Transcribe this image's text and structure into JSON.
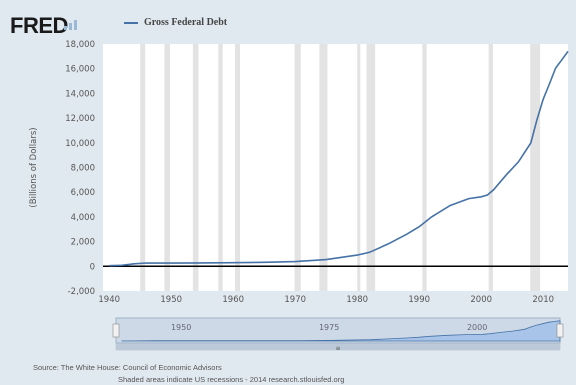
{
  "brand": {
    "name": "FRED",
    "icon": "graph-bars-icon"
  },
  "footer": {
    "source": "Source: The White House: Council of Economic Advisors",
    "note": "Shaded areas indicate US recessions - 2014 research.stlouisfed.org"
  },
  "navigator": {
    "tick_labels": [
      "1950",
      "1975",
      "2000"
    ]
  },
  "colors": {
    "line": "#4572a7",
    "plot_background": "#ffffff",
    "page_background": "#e1e9f0",
    "recession": "#e3e3e3",
    "navigator_fill": "#a8c4e8"
  },
  "chart_data": {
    "type": "line",
    "title": "",
    "xlabel": "",
    "ylabel": "(Billions of Dollars)",
    "xlim": [
      1939,
      2014
    ],
    "ylim": [
      -2000,
      18000
    ],
    "x_ticks": [
      "1940",
      "1950",
      "1960",
      "1970",
      "1980",
      "1990",
      "2000",
      "2010"
    ],
    "y_ticks": [
      "-2,000",
      "0",
      "2,000",
      "4,000",
      "6,000",
      "8,000",
      "10,000",
      "12,000",
      "14,000",
      "16,000",
      "18,000"
    ],
    "grid": false,
    "legend_position": "top-left",
    "recessions": [
      [
        1945.0,
        1945.8
      ],
      [
        1948.9,
        1949.8
      ],
      [
        1953.5,
        1954.4
      ],
      [
        1957.6,
        1958.3
      ],
      [
        1960.3,
        1961.1
      ],
      [
        1969.9,
        1970.9
      ],
      [
        1973.9,
        1975.2
      ],
      [
        1980.0,
        1980.5
      ],
      [
        1981.5,
        1982.9
      ],
      [
        1990.5,
        1991.2
      ],
      [
        2001.2,
        2001.9
      ],
      [
        2007.9,
        2009.5
      ]
    ],
    "series": [
      {
        "name": "Gross Federal Debt",
        "x": [
          1940,
          1942,
          1944,
          1946,
          1950,
          1955,
          1960,
          1965,
          1970,
          1975,
          1980,
          1982,
          1985,
          1988,
          1990,
          1992,
          1995,
          1998,
          2000,
          2001,
          2002,
          2004,
          2006,
          2008,
          2009,
          2010,
          2011,
          2012,
          2013,
          2014
        ],
        "y": [
          51,
          79,
          204,
          271,
          257,
          274,
          291,
          322,
          381,
          542,
          909,
          1137,
          1817,
          2602,
          3206,
          4002,
          4921,
          5478,
          5629,
          5770,
          6198,
          7379,
          8451,
          9986,
          11876,
          13529,
          14764,
          16051,
          16719,
          17400
        ]
      }
    ]
  }
}
